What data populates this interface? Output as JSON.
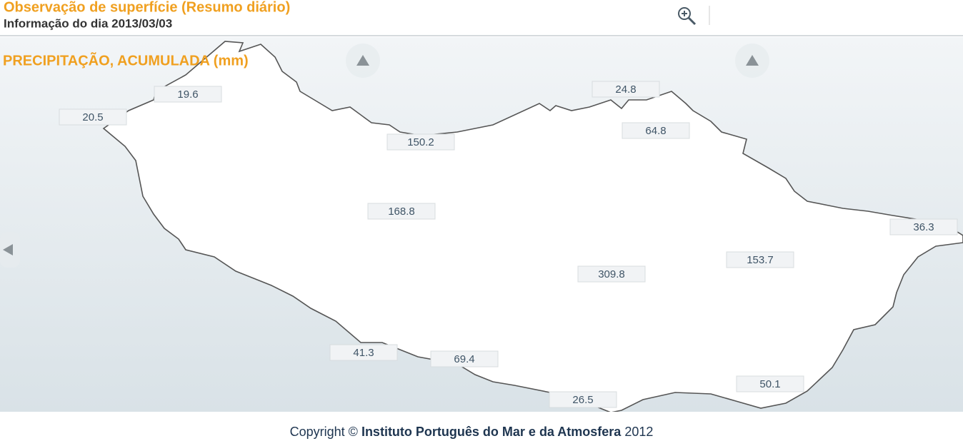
{
  "header": {
    "title": "Observação de superfície (Resumo diário)",
    "subtitle": "Informação do dia 2013/03/03"
  },
  "map": {
    "title": "PRECIPITAÇÃO, ACUMULADA (mm)",
    "stations": [
      20.5,
      19.6,
      24.8,
      150.2,
      64.8,
      168.8,
      36.3,
      153.7,
      309.8,
      41.3,
      69.4,
      26.5,
      50.1
    ]
  },
  "footer": {
    "prefix": "Copyright ©",
    "organization": "Instituto Português do Mar e da Atmosfera",
    "year": "2012"
  }
}
